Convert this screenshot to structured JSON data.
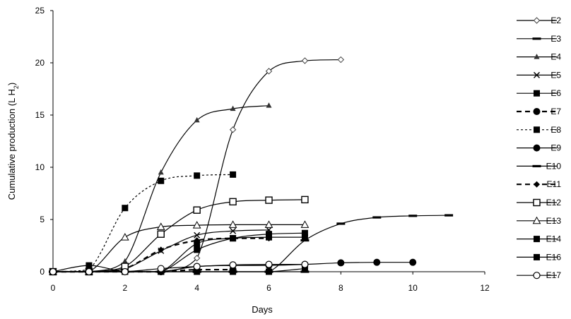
{
  "chart_data": {
    "type": "line",
    "title": "",
    "xlabel": "Days",
    "ylabel_main": "Cumulative production (L H",
    "ylabel_sub": "2",
    "ylabel_close": ")",
    "xlim": [
      0,
      12
    ],
    "ylim": [
      0,
      25
    ],
    "xticks": [
      0,
      2,
      4,
      6,
      8,
      10,
      12
    ],
    "yticks": [
      0,
      5,
      10,
      15,
      20,
      25
    ],
    "xtick_labels": [
      "0",
      "2",
      "4",
      "6",
      "8",
      "10",
      "12"
    ],
    "ytick_labels": [
      "0",
      "5",
      "10",
      "15",
      "20",
      "25"
    ],
    "grid": false,
    "legend_position": "right",
    "series": [
      {
        "name": "E2",
        "marker": "diamond-open",
        "dash": "solid",
        "x": [
          0,
          1,
          2,
          3,
          4,
          5,
          6,
          7,
          8
        ],
        "y": [
          0,
          0,
          0,
          0,
          1.3,
          13.6,
          19.2,
          20.2,
          20.3
        ]
      },
      {
        "name": "E3",
        "marker": "dash",
        "dash": "solid",
        "x": [
          0,
          1,
          2,
          3,
          4,
          5,
          6,
          7,
          8,
          9,
          10,
          11
        ],
        "y": [
          0,
          0,
          0,
          0,
          0,
          0,
          0,
          3.0,
          4.6,
          5.2,
          5.35,
          5.4
        ]
      },
      {
        "name": "E4",
        "marker": "triangle",
        "dash": "solid",
        "x": [
          0,
          1,
          2,
          3,
          4,
          5,
          6
        ],
        "y": [
          0,
          0,
          1.0,
          9.5,
          14.5,
          15.6,
          15.9
        ]
      },
      {
        "name": "E5",
        "marker": "x",
        "dash": "solid",
        "x": [
          0,
          1,
          2,
          3,
          4,
          5,
          6
        ],
        "y": [
          0,
          0,
          0.3,
          2.0,
          3.5,
          3.9,
          4.0
        ]
      },
      {
        "name": "E6",
        "marker": "square",
        "dash": "solid",
        "x": [
          0,
          1,
          2,
          3,
          4,
          5,
          6,
          7
        ],
        "y": [
          0,
          0,
          0,
          0,
          2.1,
          3.2,
          3.6,
          3.7
        ]
      },
      {
        "name": "E7",
        "marker": "circle",
        "dash": "dash-thick",
        "x": [
          0,
          1,
          2,
          3,
          4,
          5
        ],
        "y": [
          0,
          0,
          0,
          0,
          0.2,
          0.2
        ]
      },
      {
        "name": "E8",
        "marker": "square",
        "dash": "dash-thin",
        "x": [
          0,
          1,
          2,
          3,
          4,
          5
        ],
        "y": [
          0,
          0.2,
          6.1,
          8.7,
          9.2,
          9.3
        ]
      },
      {
        "name": "E9",
        "marker": "circle",
        "dash": "solid",
        "x": [
          0,
          1,
          2,
          3,
          4,
          5,
          6,
          7,
          8,
          9,
          10
        ],
        "y": [
          0,
          0,
          0,
          0,
          0.5,
          0.6,
          0.6,
          0.7,
          0.85,
          0.9,
          0.9
        ]
      },
      {
        "name": "E10",
        "marker": "dash",
        "dash": "solid",
        "x": [
          0,
          1,
          2,
          3,
          4,
          5,
          6,
          7
        ],
        "y": [
          0,
          0,
          0,
          0,
          0,
          0,
          0,
          0
        ]
      },
      {
        "name": "E11",
        "marker": "diamond",
        "dash": "dash-thick",
        "x": [
          0,
          1,
          2,
          3,
          4,
          5,
          6
        ],
        "y": [
          0,
          0,
          0.3,
          2.1,
          3.0,
          3.2,
          3.2
        ]
      },
      {
        "name": "E12",
        "marker": "square-open",
        "dash": "solid",
        "x": [
          0,
          1,
          2,
          3,
          4,
          5,
          6,
          7
        ],
        "y": [
          0,
          0,
          0.5,
          3.6,
          5.9,
          6.7,
          6.85,
          6.9
        ]
      },
      {
        "name": "E13",
        "marker": "triangle-open",
        "dash": "solid",
        "x": [
          0,
          1,
          2,
          3,
          4,
          5,
          6,
          7
        ],
        "y": [
          0,
          0,
          3.3,
          4.3,
          4.45,
          4.5,
          4.5,
          4.5
        ]
      },
      {
        "name": "E14",
        "marker": "square",
        "dash": "solid",
        "x": [
          0,
          1,
          2,
          3,
          4,
          5,
          6,
          7
        ],
        "y": [
          0,
          0,
          0,
          0,
          2.7,
          3.2,
          3.3,
          3.3
        ]
      },
      {
        "name": "E16",
        "marker": "square",
        "dash": "solid",
        "x": [
          0,
          1,
          2,
          3,
          4,
          5,
          6,
          7
        ],
        "y": [
          0,
          0.6,
          0,
          0,
          0,
          0,
          0,
          0.3
        ]
      },
      {
        "name": "E17",
        "marker": "circle-open",
        "dash": "solid",
        "x": [
          0,
          1,
          2,
          3,
          4,
          5,
          6,
          7
        ],
        "y": [
          0,
          0,
          0,
          0.3,
          0.5,
          0.65,
          0.7,
          0.7
        ]
      }
    ]
  }
}
